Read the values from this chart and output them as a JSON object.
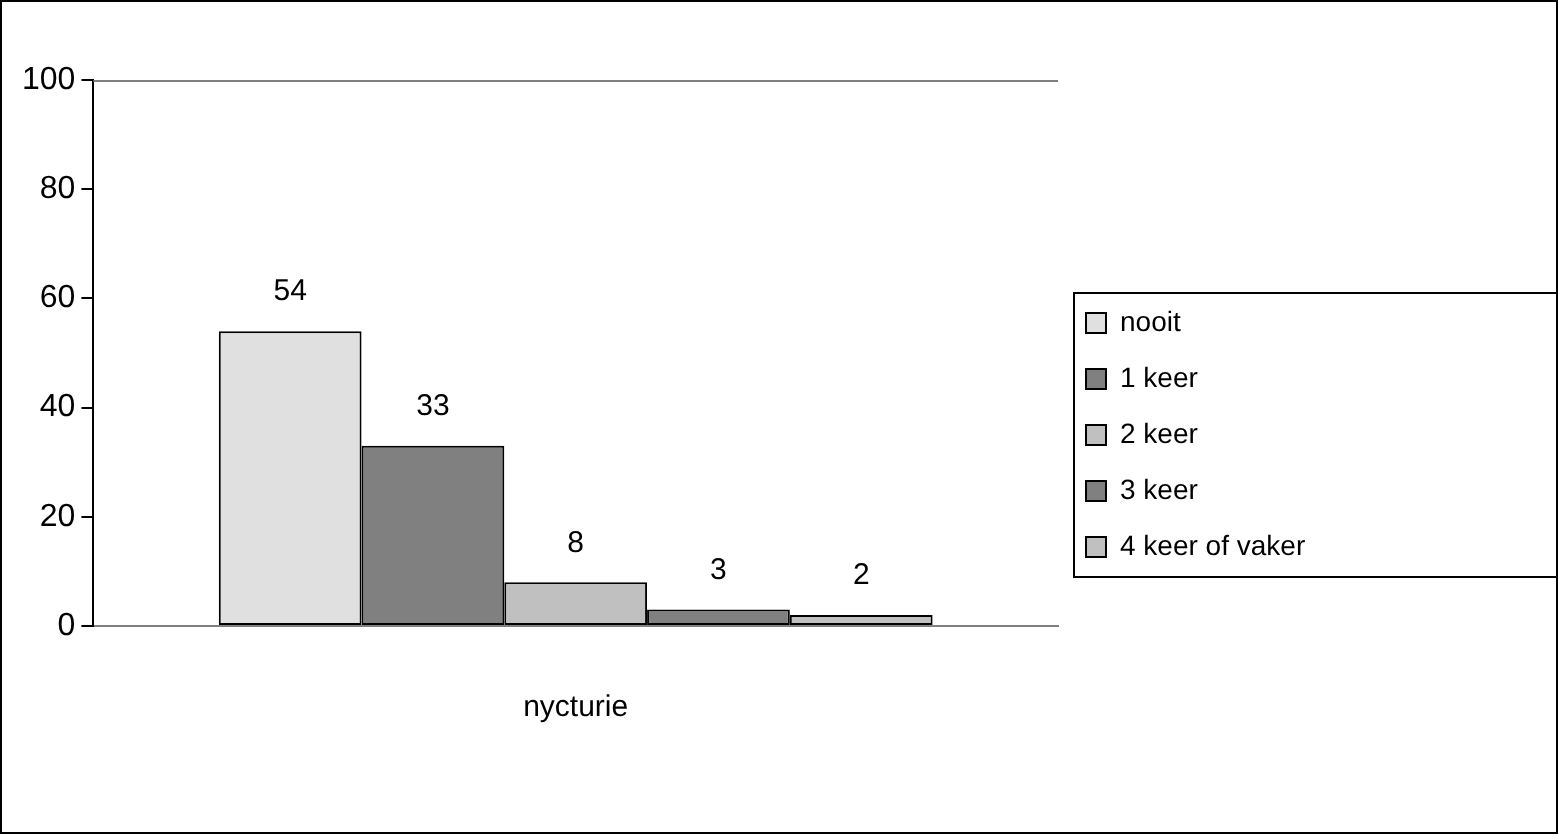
{
  "chart_data": {
    "type": "bar",
    "categories": [
      "nycturie"
    ],
    "series": [
      {
        "name": "nooit",
        "color": "#e0e0e0",
        "values": [
          54
        ]
      },
      {
        "name": "1 keer",
        "color": "#808080",
        "values": [
          33
        ]
      },
      {
        "name": "2 keer",
        "color": "#c0c0c0",
        "values": [
          8
        ]
      },
      {
        "name": "3 keer",
        "color": "#808080",
        "values": [
          3
        ]
      },
      {
        "name": "4 keer of vaker",
        "color": "#c0c0c0",
        "values": [
          2
        ]
      }
    ],
    "ylim": [
      0,
      100
    ],
    "yticks": [
      0,
      20,
      40,
      60,
      80,
      100
    ],
    "grid": false,
    "legend": "right",
    "data_labels": true
  }
}
